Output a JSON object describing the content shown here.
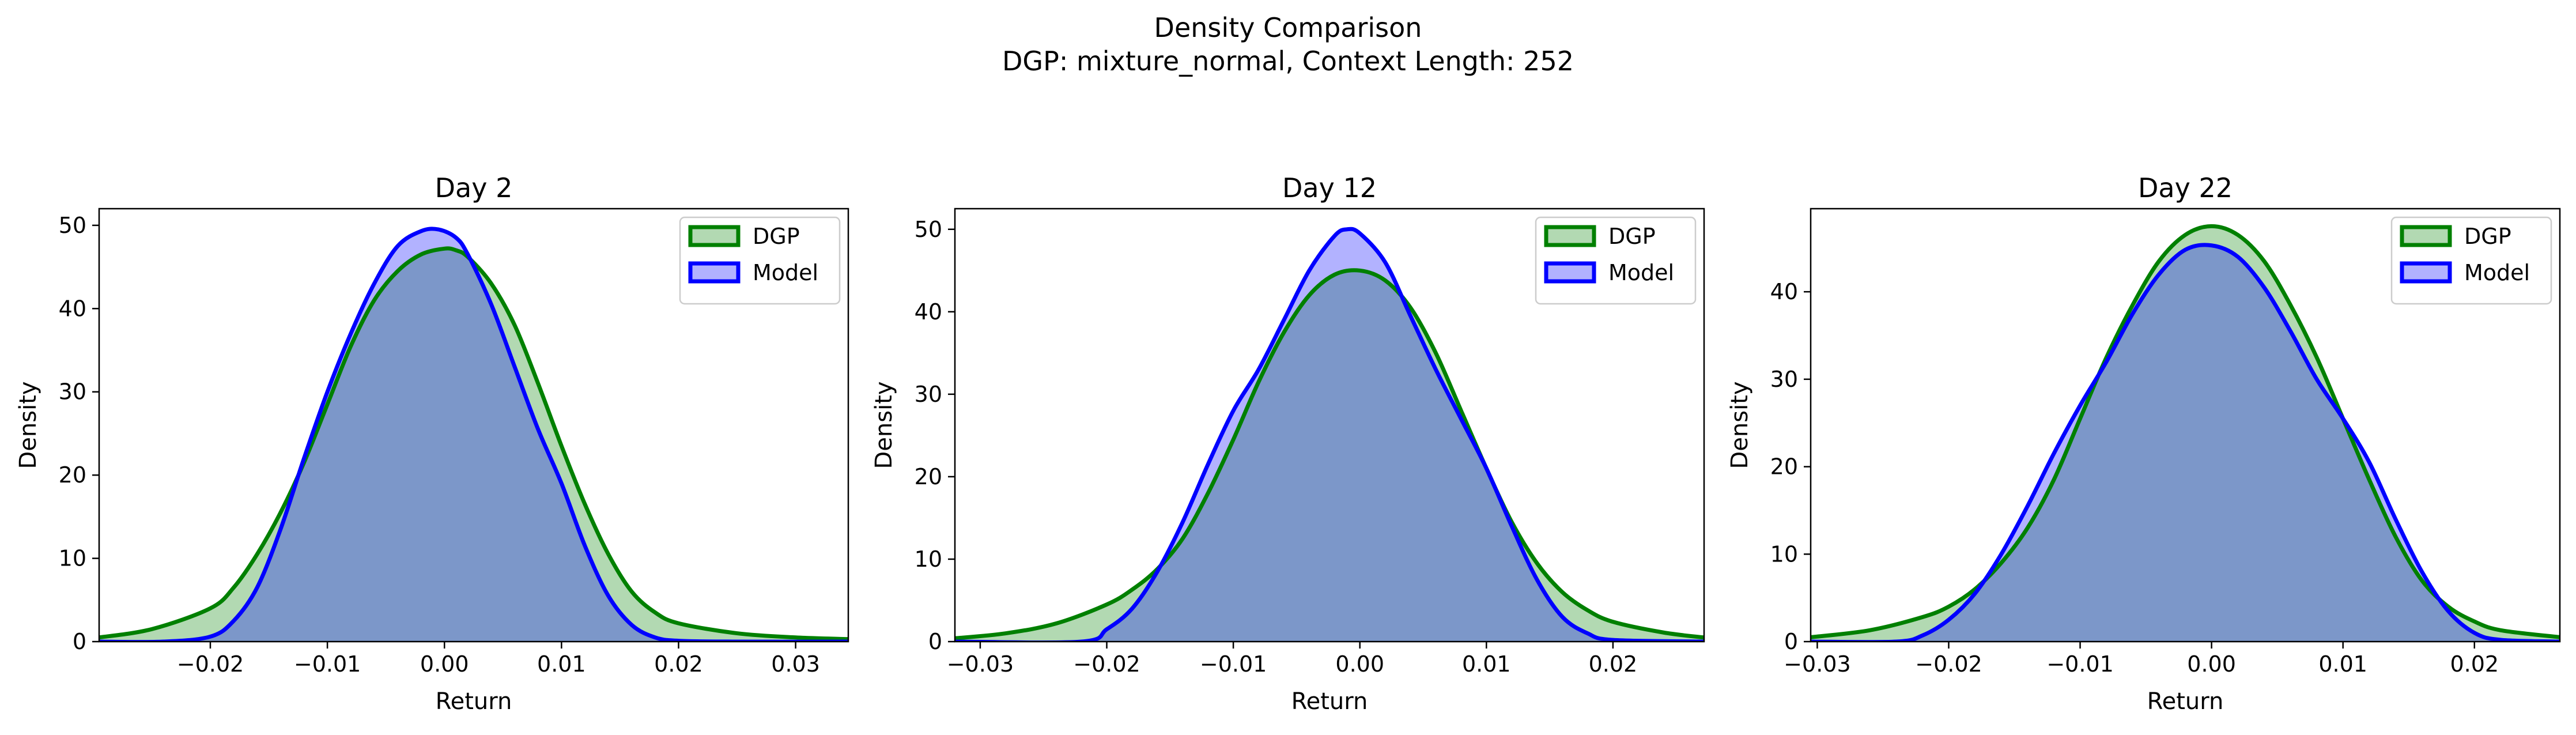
{
  "figure": {
    "title": "Density Comparison",
    "subtitle": "DGP: mixture_normal, Context Length: 252"
  },
  "chart_data": [
    {
      "type": "area",
      "title": "Day 2",
      "xlabel": "Return",
      "ylabel": "Density",
      "xlim": [
        -0.0295,
        0.0345
      ],
      "ylim": [
        0,
        52
      ],
      "xticks": [
        -0.02,
        -0.01,
        0.0,
        0.01,
        0.02,
        0.03
      ],
      "xticklabels": [
        "−0.02",
        "−0.01",
        "0.00",
        "0.01",
        "0.02",
        "0.03"
      ],
      "yticks": [
        0,
        10,
        20,
        30,
        40,
        50
      ],
      "yticklabels": [
        "0",
        "10",
        "20",
        "30",
        "40",
        "50"
      ],
      "legend": "top-right",
      "series": [
        {
          "name": "DGP",
          "color": "#008000",
          "x": [
            -0.0295,
            -0.025,
            -0.02,
            -0.018,
            -0.016,
            -0.014,
            -0.012,
            -0.01,
            -0.008,
            -0.006,
            -0.004,
            -0.002,
            0.0,
            0.001,
            0.002,
            0.004,
            0.006,
            0.008,
            0.01,
            0.012,
            0.014,
            0.016,
            0.018,
            0.02,
            0.025,
            0.03,
            0.0345
          ],
          "y": [
            0.5,
            1.5,
            4.0,
            6.5,
            10.5,
            15.5,
            21.5,
            28.5,
            35.5,
            41.0,
            44.5,
            46.5,
            47.2,
            47.0,
            46.2,
            43.0,
            38.0,
            31.0,
            23.5,
            16.5,
            10.5,
            6.0,
            3.5,
            2.2,
            1.0,
            0.5,
            0.3
          ]
        },
        {
          "name": "Model",
          "color": "#0000ff",
          "x": [
            -0.0295,
            -0.024,
            -0.02,
            -0.018,
            -0.016,
            -0.014,
            -0.012,
            -0.01,
            -0.008,
            -0.006,
            -0.004,
            -0.002,
            -0.0005,
            0.001,
            0.002,
            0.004,
            0.006,
            0.008,
            0.01,
            0.012,
            0.014,
            0.016,
            0.018,
            0.02,
            0.025,
            0.0345
          ],
          "y": [
            0.0,
            0.0,
            0.6,
            2.5,
            6.5,
            13.5,
            22.0,
            30.0,
            37.0,
            43.0,
            47.5,
            49.3,
            49.5,
            48.5,
            46.5,
            40.5,
            33.0,
            25.5,
            19.0,
            11.5,
            5.5,
            2.0,
            0.5,
            0.1,
            0.0,
            0.0
          ]
        }
      ]
    },
    {
      "type": "area",
      "title": "Day 12",
      "xlabel": "Return",
      "ylabel": "Density",
      "xlim": [
        -0.032,
        0.0272
      ],
      "ylim": [
        0,
        52.5
      ],
      "xticks": [
        -0.03,
        -0.02,
        -0.01,
        0.0,
        0.01,
        0.02
      ],
      "xticklabels": [
        "−0.03",
        "−0.02",
        "−0.01",
        "0.00",
        "0.01",
        "0.02"
      ],
      "yticks": [
        0,
        10,
        20,
        30,
        40,
        50
      ],
      "yticklabels": [
        "0",
        "10",
        "20",
        "30",
        "40",
        "50"
      ],
      "legend": "top-right",
      "series": [
        {
          "name": "DGP",
          "color": "#008000",
          "x": [
            -0.032,
            -0.028,
            -0.024,
            -0.02,
            -0.018,
            -0.016,
            -0.014,
            -0.012,
            -0.01,
            -0.008,
            -0.006,
            -0.004,
            -0.002,
            0.0,
            0.002,
            0.004,
            0.006,
            0.008,
            0.01,
            0.012,
            0.014,
            0.016,
            0.018,
            0.02,
            0.024,
            0.0272
          ],
          "y": [
            0.4,
            1.0,
            2.2,
            4.5,
            6.3,
            8.8,
            12.5,
            18.0,
            24.5,
            31.5,
            37.5,
            42.0,
            44.5,
            45.0,
            43.8,
            40.5,
            35.0,
            28.0,
            21.0,
            14.5,
            9.5,
            6.0,
            3.8,
            2.4,
            1.1,
            0.5
          ]
        },
        {
          "name": "Model",
          "color": "#0000ff",
          "x": [
            -0.032,
            -0.022,
            -0.02,
            -0.018,
            -0.016,
            -0.014,
            -0.012,
            -0.01,
            -0.008,
            -0.006,
            -0.004,
            -0.002,
            -0.001,
            0.0,
            0.002,
            0.004,
            0.006,
            0.008,
            0.01,
            0.012,
            0.014,
            0.016,
            0.018,
            0.02,
            0.0272
          ],
          "y": [
            0.0,
            0.0,
            1.5,
            4.0,
            8.5,
            14.5,
            21.5,
            28.0,
            33.0,
            39.0,
            45.0,
            49.2,
            50.0,
            49.5,
            46.0,
            39.5,
            33.0,
            27.0,
            21.0,
            14.0,
            7.5,
            3.0,
            1.0,
            0.2,
            0.0
          ]
        }
      ]
    },
    {
      "type": "area",
      "title": "Day 22",
      "xlabel": "Return",
      "ylabel": "Density",
      "xlim": [
        -0.0305,
        0.0265
      ],
      "ylim": [
        0,
        49.5
      ],
      "xticks": [
        -0.03,
        -0.02,
        -0.01,
        0.0,
        0.01,
        0.02
      ],
      "xticklabels": [
        "−0.03",
        "−0.02",
        "−0.01",
        "0.00",
        "0.01",
        "0.02"
      ],
      "yticks": [
        0,
        10,
        20,
        30,
        40
      ],
      "yticklabels": [
        "0",
        "10",
        "20",
        "30",
        "40"
      ],
      "legend": "top-right",
      "series": [
        {
          "name": "DGP",
          "color": "#008000",
          "x": [
            -0.0305,
            -0.026,
            -0.022,
            -0.02,
            -0.018,
            -0.016,
            -0.014,
            -0.012,
            -0.01,
            -0.008,
            -0.006,
            -0.004,
            -0.002,
            0.0,
            0.002,
            0.004,
            0.006,
            0.008,
            0.01,
            0.012,
            0.014,
            0.016,
            0.018,
            0.02,
            0.022,
            0.0265
          ],
          "y": [
            0.5,
            1.3,
            2.8,
            4.0,
            6.0,
            9.0,
            13.0,
            18.5,
            25.5,
            32.5,
            38.5,
            43.5,
            46.5,
            47.5,
            46.5,
            43.5,
            38.5,
            32.5,
            25.5,
            18.5,
            12.0,
            7.0,
            4.0,
            2.3,
            1.3,
            0.5
          ]
        },
        {
          "name": "Model",
          "color": "#0000ff",
          "x": [
            -0.0305,
            -0.024,
            -0.022,
            -0.02,
            -0.018,
            -0.016,
            -0.014,
            -0.012,
            -0.01,
            -0.008,
            -0.006,
            -0.004,
            -0.002,
            0.0,
            0.002,
            0.004,
            0.006,
            0.008,
            0.01,
            0.012,
            0.014,
            0.016,
            0.018,
            0.02,
            0.022,
            0.0265
          ],
          "y": [
            0.0,
            0.0,
            0.7,
            2.5,
            5.5,
            10.0,
            15.5,
            21.5,
            27.0,
            32.0,
            37.5,
            42.0,
            44.8,
            45.3,
            44.0,
            40.5,
            35.5,
            30.0,
            25.5,
            20.5,
            14.0,
            8.0,
            3.5,
            1.0,
            0.2,
            0.0
          ]
        }
      ]
    }
  ]
}
